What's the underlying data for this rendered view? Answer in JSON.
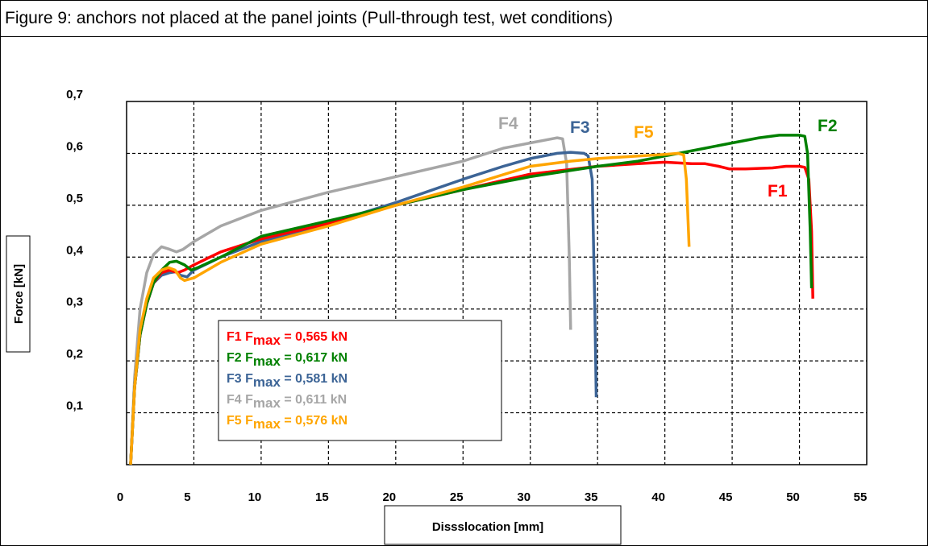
{
  "chart_data": {
    "type": "line",
    "title": "Figure 9: anchors not placed at the panel joints (Pull-through test, wet conditions)",
    "xlabel": "Dissslocation [mm]",
    "ylabel": "Force [kN]",
    "xlim": [
      0,
      55
    ],
    "ylim": [
      0,
      0.7
    ],
    "x_ticks": [
      "0",
      "5",
      "10",
      "15",
      "20",
      "25",
      "30",
      "35",
      "40",
      "45",
      "50",
      "55"
    ],
    "y_ticks": [
      "0,1",
      "0,2",
      "0,3",
      "0,4",
      "0,5",
      "0,6",
      "0,7"
    ],
    "grid": true,
    "legend_position": "bottom-left",
    "series": [
      {
        "name": "F1",
        "color": "#ff0000",
        "legend_label": "F1 ",
        "legend_sub": "max",
        "legend_value": " = 0,565 kN",
        "points": [
          [
            0.3,
            0
          ],
          [
            0.6,
            0.15
          ],
          [
            1.0,
            0.25
          ],
          [
            1.5,
            0.31
          ],
          [
            2.0,
            0.35
          ],
          [
            2.6,
            0.37
          ],
          [
            3.2,
            0.375
          ],
          [
            3.8,
            0.37
          ],
          [
            4.3,
            0.375
          ],
          [
            5,
            0.385
          ],
          [
            7,
            0.41
          ],
          [
            10,
            0.435
          ],
          [
            15,
            0.465
          ],
          [
            20,
            0.5
          ],
          [
            25,
            0.53
          ],
          [
            30,
            0.56
          ],
          [
            35,
            0.575
          ],
          [
            38,
            0.58
          ],
          [
            40,
            0.583
          ],
          [
            42,
            0.58
          ],
          [
            43,
            0.58
          ],
          [
            44,
            0.575
          ],
          [
            44.8,
            0.57
          ],
          [
            46,
            0.57
          ],
          [
            48,
            0.572
          ],
          [
            49,
            0.575
          ],
          [
            50,
            0.575
          ],
          [
            50.4,
            0.573
          ],
          [
            50.7,
            0.55
          ],
          [
            50.9,
            0.45
          ],
          [
            51.0,
            0.32
          ]
        ]
      },
      {
        "name": "F2",
        "color": "#008000",
        "legend_label": "F2 ",
        "legend_sub": "max",
        "legend_value": " = 0,617 kN",
        "points": [
          [
            0.3,
            0
          ],
          [
            0.6,
            0.15
          ],
          [
            1.0,
            0.25
          ],
          [
            1.5,
            0.31
          ],
          [
            2.0,
            0.35
          ],
          [
            2.6,
            0.375
          ],
          [
            3.2,
            0.39
          ],
          [
            3.7,
            0.392
          ],
          [
            4.3,
            0.385
          ],
          [
            4.8,
            0.375
          ],
          [
            5.3,
            0.38
          ],
          [
            7,
            0.4
          ],
          [
            10,
            0.44
          ],
          [
            15,
            0.47
          ],
          [
            20,
            0.5
          ],
          [
            25,
            0.53
          ],
          [
            30,
            0.555
          ],
          [
            35,
            0.575
          ],
          [
            38,
            0.585
          ],
          [
            40,
            0.595
          ],
          [
            43,
            0.61
          ],
          [
            45,
            0.62
          ],
          [
            47,
            0.63
          ],
          [
            48.5,
            0.635
          ],
          [
            50,
            0.635
          ],
          [
            50.4,
            0.633
          ],
          [
            50.6,
            0.6
          ],
          [
            50.8,
            0.45
          ],
          [
            50.9,
            0.34
          ]
        ]
      },
      {
        "name": "F3",
        "color": "#3c6496",
        "legend_label": "F3 ",
        "legend_sub": "max",
        "legend_value": " = 0,581 kN",
        "points": [
          [
            0.3,
            0
          ],
          [
            0.6,
            0.15
          ],
          [
            1.0,
            0.25
          ],
          [
            1.5,
            0.31
          ],
          [
            2.0,
            0.35
          ],
          [
            2.6,
            0.365
          ],
          [
            3.2,
            0.37
          ],
          [
            3.7,
            0.372
          ],
          [
            4.0,
            0.365
          ],
          [
            4.5,
            0.362
          ],
          [
            5,
            0.375
          ],
          [
            7,
            0.4
          ],
          [
            10,
            0.43
          ],
          [
            15,
            0.465
          ],
          [
            20,
            0.505
          ],
          [
            25,
            0.55
          ],
          [
            28,
            0.575
          ],
          [
            30,
            0.59
          ],
          [
            32,
            0.6
          ],
          [
            33,
            0.602
          ],
          [
            34,
            0.6
          ],
          [
            34.3,
            0.595
          ],
          [
            34.6,
            0.55
          ],
          [
            34.8,
            0.3
          ],
          [
            34.9,
            0.13
          ]
        ]
      },
      {
        "name": "F4",
        "color": "#a6a6a6",
        "legend_label": "F4 ",
        "legend_sub": "max",
        "legend_value": " = 0,611 kN",
        "points": [
          [
            0.3,
            0
          ],
          [
            0.6,
            0.17
          ],
          [
            1.0,
            0.3
          ],
          [
            1.5,
            0.37
          ],
          [
            2.0,
            0.405
          ],
          [
            2.6,
            0.42
          ],
          [
            3.2,
            0.415
          ],
          [
            3.7,
            0.41
          ],
          [
            4.2,
            0.415
          ],
          [
            5,
            0.43
          ],
          [
            7,
            0.46
          ],
          [
            10,
            0.49
          ],
          [
            15,
            0.525
          ],
          [
            20,
            0.555
          ],
          [
            25,
            0.585
          ],
          [
            28,
            0.61
          ],
          [
            30,
            0.62
          ],
          [
            31,
            0.625
          ],
          [
            32,
            0.63
          ],
          [
            32.4,
            0.628
          ],
          [
            32.7,
            0.58
          ],
          [
            32.9,
            0.4
          ],
          [
            33.0,
            0.26
          ]
        ]
      },
      {
        "name": "F5",
        "color": "#ffa500",
        "legend_label": "F5 ",
        "legend_sub": "max",
        "legend_value": " = 0,576 kN",
        "points": [
          [
            0.3,
            0
          ],
          [
            0.6,
            0.15
          ],
          [
            1.0,
            0.26
          ],
          [
            1.5,
            0.32
          ],
          [
            2.0,
            0.36
          ],
          [
            2.6,
            0.375
          ],
          [
            3.1,
            0.38
          ],
          [
            3.6,
            0.375
          ],
          [
            4.0,
            0.36
          ],
          [
            4.3,
            0.355
          ],
          [
            5,
            0.36
          ],
          [
            7,
            0.39
          ],
          [
            10,
            0.425
          ],
          [
            15,
            0.46
          ],
          [
            20,
            0.5
          ],
          [
            25,
            0.535
          ],
          [
            30,
            0.575
          ],
          [
            33,
            0.585
          ],
          [
            35,
            0.59
          ],
          [
            38,
            0.595
          ],
          [
            40,
            0.598
          ],
          [
            41,
            0.6
          ],
          [
            41.4,
            0.597
          ],
          [
            41.6,
            0.55
          ],
          [
            41.8,
            0.42
          ]
        ]
      }
    ],
    "series_labels": [
      {
        "text": "F1"
      },
      {
        "text": "F2"
      },
      {
        "text": "F3"
      },
      {
        "text": "F4"
      },
      {
        "text": "F5"
      }
    ]
  }
}
